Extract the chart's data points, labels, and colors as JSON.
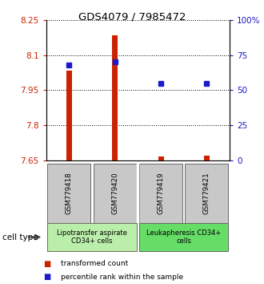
{
  "title": "GDS4079 / 7985472",
  "samples": [
    "GSM779418",
    "GSM779420",
    "GSM779419",
    "GSM779421"
  ],
  "red_values": [
    8.035,
    8.185,
    7.668,
    7.672
  ],
  "blue_values": [
    68,
    70,
    55,
    55
  ],
  "ylim_left": [
    7.65,
    8.25
  ],
  "ylim_right": [
    0,
    100
  ],
  "yticks_left": [
    7.65,
    7.8,
    7.95,
    8.1,
    8.25
  ],
  "ytick_labels_left": [
    "7.65",
    "7.8",
    "7.95",
    "8.1",
    "8.25"
  ],
  "yticks_right": [
    0,
    25,
    50,
    75,
    100
  ],
  "ytick_labels_right": [
    "0",
    "25",
    "50",
    "75",
    "100%"
  ],
  "red_color": "#cc2200",
  "blue_color": "#1a1acc",
  "bar_width": 0.12,
  "groups": [
    {
      "label": "Lipotransfer aspirate\nCD34+ cells",
      "samples": [
        0,
        1
      ],
      "color": "#bbeeaa"
    },
    {
      "label": "Leukapheresis CD34+\ncells",
      "samples": [
        2,
        3
      ],
      "color": "#66dd66"
    }
  ],
  "cell_type_label": "cell type",
  "legend_red": "transformed count",
  "legend_blue": "percentile rank within the sample",
  "tick_label_color_left": "#cc2200",
  "tick_label_color_right": "#1a1acc",
  "sample_box_color": "#c8c8c8",
  "group_border_color": "#555555"
}
